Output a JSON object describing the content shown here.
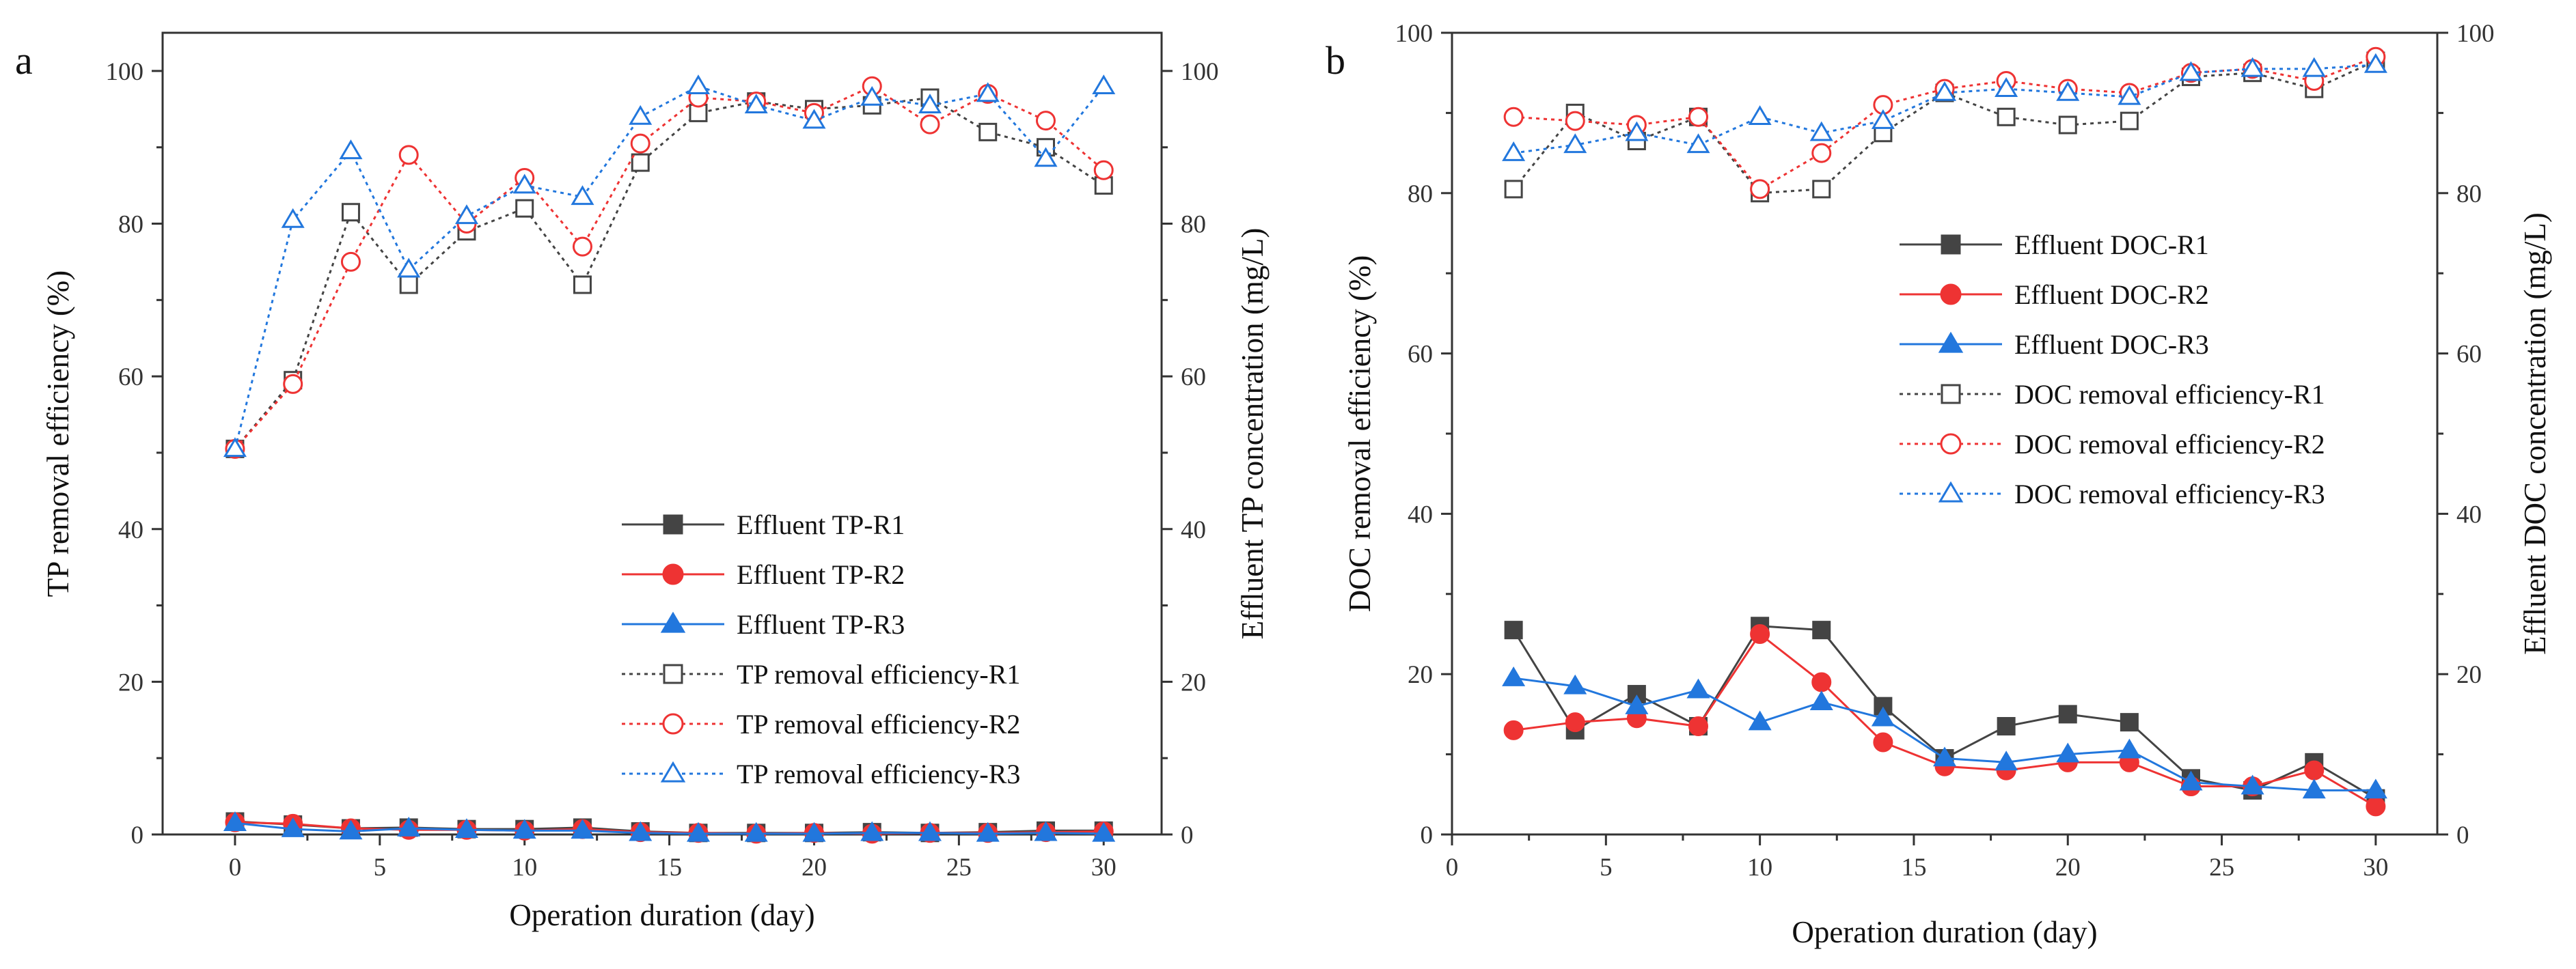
{
  "chart_data": [
    {
      "type": "line",
      "panel_label": "a",
      "xlabel": "Operation duration (day)",
      "ylabel_left": "TP removal efficiency (%)",
      "ylabel_right": "Effluent TP concentration (mg/L)",
      "xlim": [
        -2.5,
        32
      ],
      "ylim_left": [
        0,
        105
      ],
      "ylim_right": [
        0,
        105
      ],
      "xticks": [
        0,
        5,
        10,
        15,
        20,
        25,
        30
      ],
      "xminor": [
        2.5,
        7.5,
        12.5,
        17.5,
        22.5,
        27.5
      ],
      "yticks_left": [
        0,
        20,
        40,
        60,
        80,
        100
      ],
      "yticks_right": [
        0,
        20,
        40,
        60,
        80,
        100
      ],
      "legend_position": "lower-right",
      "x": [
        0,
        2,
        4,
        6,
        8,
        10,
        12,
        14,
        16,
        18,
        20,
        22,
        24,
        26,
        28,
        30
      ],
      "series": [
        {
          "name": "Effluent TP-R1",
          "axis": "right",
          "color": "#444444",
          "marker": "square-filled",
          "line": "solid",
          "values": [
            1.7,
            1.3,
            0.8,
            0.9,
            0.7,
            0.7,
            0.9,
            0.4,
            0.2,
            0.2,
            0.2,
            0.3,
            0.2,
            0.3,
            0.5,
            0.5
          ]
        },
        {
          "name": "Effluent TP-R2",
          "axis": "right",
          "color": "#ee3333",
          "marker": "circle-filled",
          "line": "solid",
          "values": [
            1.6,
            1.4,
            0.8,
            0.6,
            0.6,
            0.5,
            0.7,
            0.3,
            0.2,
            0.1,
            0.2,
            0.1,
            0.2,
            0.2,
            0.3,
            0.4
          ]
        },
        {
          "name": "Effluent TP-R3",
          "axis": "right",
          "color": "#2277dd",
          "marker": "triangle-filled",
          "line": "solid",
          "values": [
            1.5,
            0.7,
            0.4,
            0.8,
            0.6,
            0.5,
            0.5,
            0.2,
            0.1,
            0.1,
            0.1,
            0.2,
            0.2,
            0.1,
            0.2,
            0.1
          ]
        },
        {
          "name": "TP removal efficiency-R1",
          "axis": "left",
          "color": "#444444",
          "marker": "square-open",
          "line": "dotted",
          "values": [
            50.5,
            59.5,
            81.5,
            72.0,
            79.0,
            82.0,
            72.0,
            88.0,
            94.5,
            96.0,
            95.0,
            95.5,
            96.5,
            92.0,
            90.0,
            85.0
          ]
        },
        {
          "name": "TP removal efficiency-R2",
          "axis": "left",
          "color": "#ee3333",
          "marker": "circle-open",
          "line": "dotted",
          "values": [
            50.5,
            59.0,
            75.0,
            89.0,
            80.0,
            86.0,
            77.0,
            90.5,
            96.5,
            96.0,
            94.5,
            98.0,
            93.0,
            97.0,
            93.5,
            87.0
          ]
        },
        {
          "name": "TP removal efficiency-R3",
          "axis": "left",
          "color": "#2277dd",
          "marker": "triangle-open",
          "line": "dotted",
          "values": [
            50.5,
            80.5,
            89.5,
            74.0,
            81.0,
            85.0,
            83.5,
            94.0,
            98.0,
            95.5,
            93.5,
            96.5,
            95.5,
            97.0,
            88.5,
            98.0
          ]
        }
      ]
    },
    {
      "type": "line",
      "panel_label": "b",
      "xlabel": "Operation duration (day)",
      "ylabel_left": "DOC removal efficiency (%)",
      "ylabel_right": "Effluent DOC concentration (mg/L)",
      "xlim": [
        0,
        32
      ],
      "ylim_left": [
        0,
        100
      ],
      "ylim_right": [
        0,
        100
      ],
      "xticks": [
        0,
        5,
        10,
        15,
        20,
        25,
        30
      ],
      "xminor": [
        2.5,
        7.5,
        12.5,
        17.5,
        22.5,
        27.5
      ],
      "yticks_left": [
        0,
        20,
        40,
        60,
        80,
        100
      ],
      "yticks_right": [
        0,
        20,
        40,
        60,
        80,
        100
      ],
      "legend_position": "center-right",
      "x": [
        2,
        4,
        6,
        8,
        10,
        12,
        14,
        16,
        18,
        20,
        22,
        24,
        26,
        28,
        30
      ],
      "series": [
        {
          "name": "Effluent DOC-R1",
          "axis": "right",
          "color": "#444444",
          "marker": "square-filled",
          "line": "solid",
          "values": [
            25.5,
            13.0,
            17.5,
            13.5,
            26.0,
            25.5,
            16.0,
            9.5,
            13.5,
            15.0,
            14.0,
            7.0,
            5.5,
            9.0,
            4.5
          ]
        },
        {
          "name": "Effluent DOC-R2",
          "axis": "right",
          "color": "#ee3333",
          "marker": "circle-filled",
          "line": "solid",
          "values": [
            13.0,
            14.0,
            14.5,
            13.5,
            25.0,
            19.0,
            11.5,
            8.5,
            8.0,
            9.0,
            9.0,
            6.0,
            6.0,
            8.0,
            3.5
          ]
        },
        {
          "name": "Effluent DOC-R3",
          "axis": "right",
          "color": "#2277dd",
          "marker": "triangle-filled",
          "line": "solid",
          "values": [
            19.5,
            18.5,
            16.0,
            18.0,
            14.0,
            16.5,
            14.5,
            9.5,
            9.0,
            10.0,
            10.5,
            6.5,
            6.0,
            5.5,
            5.5
          ]
        },
        {
          "name": "DOC removal efficiency-R1",
          "axis": "left",
          "color": "#444444",
          "marker": "square-open",
          "line": "dotted",
          "values": [
            80.5,
            90.0,
            86.5,
            89.5,
            80.0,
            80.5,
            87.5,
            92.5,
            89.5,
            88.5,
            89.0,
            94.5,
            95.0,
            93.0,
            96.5
          ]
        },
        {
          "name": "DOC removal efficiency-R2",
          "axis": "left",
          "color": "#ee3333",
          "marker": "circle-open",
          "line": "dotted",
          "values": [
            89.5,
            89.0,
            88.5,
            89.5,
            80.5,
            85.0,
            91.0,
            93.0,
            94.0,
            93.0,
            92.5,
            95.0,
            95.5,
            94.0,
            97.0
          ]
        },
        {
          "name": "DOC removal efficiency-R3",
          "axis": "left",
          "color": "#2277dd",
          "marker": "triangle-open",
          "line": "dotted",
          "values": [
            85.0,
            86.0,
            87.5,
            86.0,
            89.5,
            87.5,
            89.0,
            92.5,
            93.0,
            92.5,
            92.0,
            95.0,
            95.5,
            95.5,
            96.0
          ]
        }
      ]
    }
  ]
}
